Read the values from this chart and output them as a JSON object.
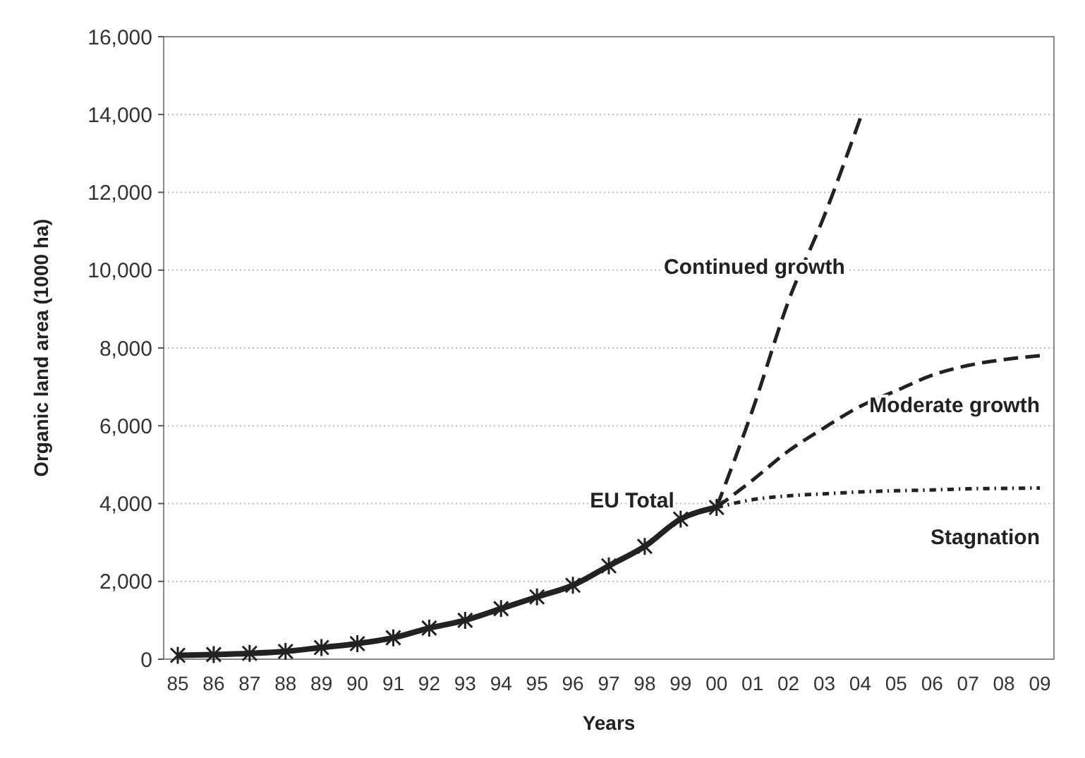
{
  "chart_data": {
    "type": "line",
    "xlabel": "Years",
    "ylabel": "Organic land area (1000 ha)",
    "categories": [
      "85",
      "86",
      "87",
      "88",
      "89",
      "90",
      "91",
      "92",
      "93",
      "94",
      "95",
      "96",
      "97",
      "98",
      "99",
      "00",
      "01",
      "02",
      "03",
      "04",
      "05",
      "06",
      "07",
      "08",
      "09"
    ],
    "ylim": [
      0,
      16000
    ],
    "yticks": [
      {
        "value": 0,
        "label": "0"
      },
      {
        "value": 2000,
        "label": "2,000"
      },
      {
        "value": 4000,
        "label": "4,000"
      },
      {
        "value": 6000,
        "label": "6,000"
      },
      {
        "value": 8000,
        "label": "8,000"
      },
      {
        "value": 10000,
        "label": "10,000"
      },
      {
        "value": 12000,
        "label": "12,000"
      },
      {
        "value": 14000,
        "label": "14,000"
      },
      {
        "value": 16000,
        "label": "16,000"
      }
    ],
    "grid": "y",
    "series": [
      {
        "name": "EU Total",
        "color": "#222222",
        "marker": "cross",
        "line_style": "solid",
        "values": [
          100,
          120,
          150,
          200,
          300,
          400,
          550,
          800,
          1000,
          1300,
          1600,
          1900,
          2400,
          2900,
          3600,
          3900,
          null,
          null,
          null,
          null,
          null,
          null,
          null,
          null,
          null
        ]
      },
      {
        "name": "Continued growth",
        "color": "#222222",
        "marker": "none",
        "line_style": "dashed",
        "values": [
          null,
          null,
          null,
          null,
          null,
          null,
          null,
          null,
          null,
          null,
          null,
          null,
          null,
          null,
          null,
          3900,
          6400,
          9200,
          11400,
          13900,
          null,
          null,
          null,
          null,
          null
        ]
      },
      {
        "name": "Moderate growth",
        "color": "#222222",
        "marker": "none",
        "line_style": "dashed",
        "values": [
          null,
          null,
          null,
          null,
          null,
          null,
          null,
          null,
          null,
          null,
          null,
          null,
          null,
          null,
          null,
          3900,
          4600,
          5350,
          5950,
          6500,
          6900,
          7300,
          7550,
          7700,
          7800
        ]
      },
      {
        "name": "Stagnation",
        "color": "#222222",
        "marker": "none",
        "line_style": "dotted",
        "values": [
          null,
          null,
          null,
          null,
          null,
          null,
          null,
          null,
          null,
          null,
          null,
          null,
          null,
          null,
          null,
          3900,
          4100,
          4200,
          4250,
          4300,
          4330,
          4350,
          4380,
          4390,
          4400
        ]
      }
    ]
  }
}
